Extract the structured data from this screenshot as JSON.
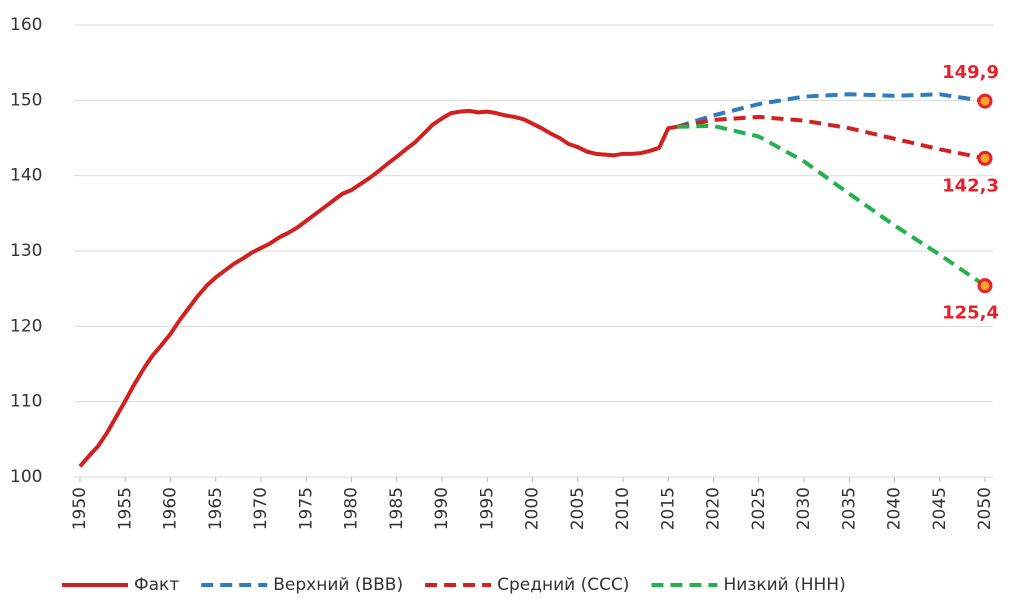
{
  "chart_data": {
    "type": "line",
    "xlim": [
      1950,
      2050
    ],
    "xticks": [
      1950,
      1955,
      1960,
      1965,
      1970,
      1975,
      1980,
      1985,
      1990,
      1995,
      2000,
      2005,
      2010,
      2015,
      2020,
      2025,
      2030,
      2035,
      2040,
      2045,
      2050
    ],
    "ylim": [
      100,
      160
    ],
    "yticks": [
      100,
      110,
      120,
      130,
      140,
      150,
      160
    ],
    "grid": true,
    "legend": "bottom",
    "series": [
      {
        "name": "Факт",
        "color": "#d21f1f",
        "dash": false,
        "x": [
          1950,
          1951,
          1952,
          1953,
          1954,
          1955,
          1956,
          1957,
          1958,
          1959,
          1960,
          1961,
          1962,
          1963,
          1964,
          1965,
          1966,
          1967,
          1968,
          1969,
          1970,
          1971,
          1972,
          1973,
          1974,
          1975,
          1976,
          1977,
          1978,
          1979,
          1980,
          1981,
          1982,
          1983,
          1984,
          1985,
          1986,
          1987,
          1988,
          1989,
          1990,
          1991,
          1992,
          1993,
          1994,
          1995,
          1996,
          1997,
          1998,
          1999,
          2000,
          2001,
          2002,
          2003,
          2004,
          2005,
          2006,
          2007,
          2008,
          2009,
          2010,
          2011,
          2012,
          2013,
          2014,
          2015,
          2016
        ],
        "values": [
          101.4,
          102.8,
          104.1,
          105.9,
          108.0,
          110.1,
          112.3,
          114.3,
          116.1,
          117.5,
          119.0,
          120.8,
          122.4,
          124.0,
          125.4,
          126.5,
          127.4,
          128.3,
          129.0,
          129.8,
          130.4,
          131.0,
          131.8,
          132.4,
          133.1,
          134.0,
          134.9,
          135.8,
          136.7,
          137.6,
          138.1,
          138.9,
          139.7,
          140.6,
          141.6,
          142.5,
          143.5,
          144.4,
          145.6,
          146.8,
          147.6,
          148.3,
          148.5,
          148.6,
          148.4,
          148.5,
          148.3,
          148.0,
          147.8,
          147.5,
          146.9,
          146.3,
          145.6,
          145.0,
          144.2,
          143.8,
          143.2,
          142.9,
          142.8,
          142.7,
          142.9,
          142.9,
          143.0,
          143.3,
          143.7,
          146.3,
          146.5
        ]
      },
      {
        "name": "Верхний (ВВВ)",
        "color": "#2e7bbf",
        "dash": true,
        "x": [
          2016,
          2020,
          2025,
          2030,
          2035,
          2040,
          2045,
          2050
        ],
        "values": [
          146.5,
          148.0,
          149.5,
          150.5,
          150.8,
          150.6,
          150.8,
          149.9
        ],
        "value_labels": [
          null,
          null,
          null,
          null,
          null,
          null,
          null,
          "149,9"
        ]
      },
      {
        "name": "Средний (ССС)",
        "color": "#d42020",
        "dash": true,
        "x": [
          2016,
          2020,
          2025,
          2030,
          2035,
          2040,
          2045,
          2050
        ],
        "values": [
          146.5,
          147.4,
          147.8,
          147.3,
          146.3,
          144.9,
          143.5,
          142.3
        ],
        "value_labels": [
          null,
          null,
          null,
          null,
          null,
          null,
          null,
          "142,3"
        ]
      },
      {
        "name": "Низкий (ННН)",
        "color": "#22b14c",
        "dash": true,
        "x": [
          2016,
          2020,
          2025,
          2030,
          2035,
          2040,
          2045,
          2050
        ],
        "values": [
          146.5,
          146.6,
          145.2,
          141.9,
          137.6,
          133.4,
          129.5,
          125.4
        ],
        "value_labels": [
          null,
          null,
          null,
          null,
          null,
          null,
          null,
          "125,4"
        ]
      }
    ]
  }
}
